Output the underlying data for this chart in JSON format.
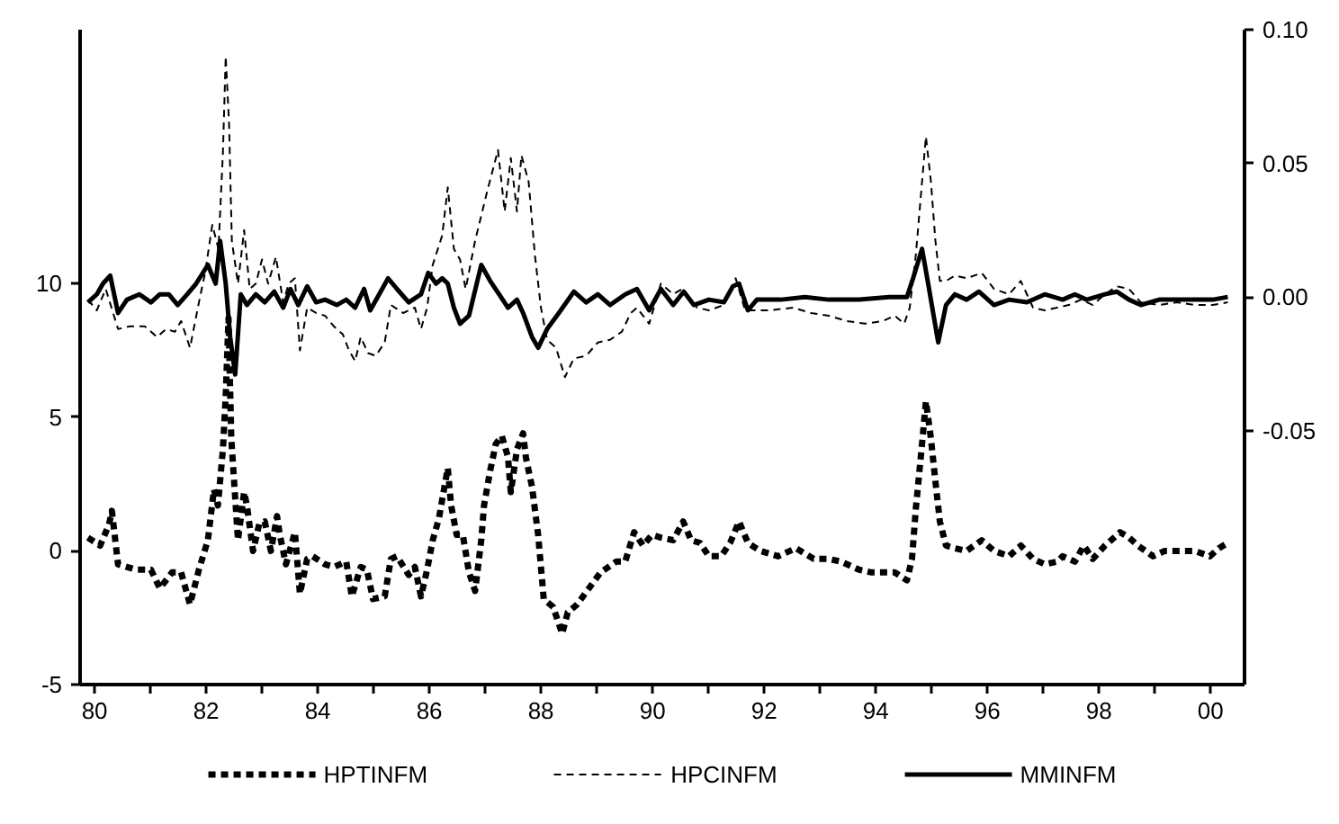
{
  "chart_data": {
    "type": "line",
    "legend": "bottom",
    "xlim": [
      1979.74,
      2000.61
    ],
    "ylim": [
      -5,
      19.5
    ],
    "y2lim": [
      -0.145,
      0.1
    ],
    "xticks": [
      {
        "value": 1980,
        "label": "80"
      },
      {
        "value": 1981,
        "label": null
      },
      {
        "value": 1982,
        "label": "82"
      },
      {
        "value": 1983,
        "label": null
      },
      {
        "value": 1984,
        "label": "84"
      },
      {
        "value": 1985,
        "label": null
      },
      {
        "value": 1986,
        "label": "86"
      },
      {
        "value": 1987,
        "label": null
      },
      {
        "value": 1988,
        "label": "88"
      },
      {
        "value": 1989,
        "label": null
      },
      {
        "value": 1990,
        "label": "90"
      },
      {
        "value": 1991,
        "label": null
      },
      {
        "value": 1992,
        "label": "92"
      },
      {
        "value": 1993,
        "label": null
      },
      {
        "value": 1994,
        "label": "94"
      },
      {
        "value": 1995,
        "label": null
      },
      {
        "value": 1996,
        "label": "96"
      },
      {
        "value": 1997,
        "label": null
      },
      {
        "value": 1998,
        "label": "98"
      },
      {
        "value": 1999,
        "label": null
      },
      {
        "value": 2000,
        "label": "00"
      }
    ],
    "yticks": [
      -5,
      0,
      5,
      10
    ],
    "y2ticks": [
      {
        "value": -0.05,
        "label": "-0.05"
      },
      {
        "value": 0,
        "label": "0.00"
      },
      {
        "value": 0.05,
        "label": "0.05"
      },
      {
        "value": 0.1,
        "label": "0.10"
      }
    ],
    "series": [
      {
        "name": "HPTINFM",
        "color": "#000000",
        "line_style": "dotted",
        "x": [
          1979.88,
          1980.1,
          1980.26,
          1980.31,
          1980.42,
          1980.74,
          1981.01,
          1981.17,
          1981.39,
          1981.55,
          1981.71,
          1981.87,
          1982.03,
          1982.14,
          1982.21,
          1982.3,
          1982.35,
          1982.4,
          1982.45,
          1982.57,
          1982.68,
          1982.73,
          1982.84,
          1982.95,
          1983.05,
          1983.16,
          1983.27,
          1983.32,
          1983.43,
          1983.59,
          1983.68,
          1983.81,
          1983.91,
          1984.13,
          1984.29,
          1984.51,
          1984.61,
          1984.77,
          1984.88,
          1984.99,
          1985.2,
          1985.31,
          1985.42,
          1985.63,
          1985.74,
          1985.85,
          1985.96,
          1986.06,
          1986.17,
          1986.33,
          1986.39,
          1986.49,
          1986.6,
          1986.71,
          1986.82,
          1986.93,
          1986.98,
          1987.09,
          1987.19,
          1987.3,
          1987.41,
          1987.46,
          1987.57,
          1987.68,
          1987.73,
          1987.84,
          1987.95,
          1988.05,
          1988.22,
          1988.38,
          1988.48,
          1988.65,
          1988.86,
          1989.07,
          1989.35,
          1989.51,
          1989.67,
          1989.83,
          1989.99,
          1990.15,
          1990.37,
          1990.55,
          1990.69,
          1990.85,
          1991.01,
          1991.23,
          1991.39,
          1991.55,
          1991.71,
          1991.93,
          1992.25,
          1992.57,
          1992.89,
          1993.16,
          1993.38,
          1993.7,
          1993.91,
          1994.13,
          1994.34,
          1994.56,
          1994.65,
          1994.72,
          1994.83,
          1994.9,
          1994.99,
          1995.07,
          1995.15,
          1995.26,
          1995.42,
          1995.63,
          1995.9,
          1996.12,
          1996.39,
          1996.6,
          1996.82,
          1997.03,
          1997.25,
          1997.35,
          1997.57,
          1997.73,
          1997.89,
          1998.11,
          1998.38,
          1998.54,
          1998.7,
          1998.97,
          1999.18,
          1999.4,
          1999.72,
          1999.99,
          2000.15,
          2000.31
        ],
        "values": [
          0.5,
          0.2,
          1.0,
          1.5,
          -0.5,
          -0.7,
          -0.7,
          -1.4,
          -0.8,
          -0.8,
          -2.0,
          -0.7,
          0.4,
          2.3,
          1.7,
          3.8,
          5.8,
          8.7,
          4.2,
          0.4,
          2.2,
          1.7,
          0.0,
          1.0,
          1.1,
          0.0,
          1.3,
          0.6,
          -0.5,
          0.7,
          -1.6,
          -0.3,
          -0.2,
          -0.5,
          -0.6,
          -0.4,
          -1.7,
          -0.6,
          -0.7,
          -1.8,
          -1.7,
          -0.3,
          -0.2,
          -0.9,
          -0.6,
          -1.7,
          -0.7,
          0.4,
          1.2,
          3.1,
          1.7,
          0.6,
          0.6,
          -0.8,
          -1.5,
          0.4,
          1.7,
          3.0,
          4.0,
          4.3,
          3.5,
          2.2,
          3.8,
          4.4,
          3.5,
          2.4,
          0.6,
          -1.8,
          -2.1,
          -3.1,
          -2.3,
          -2.0,
          -1.4,
          -0.8,
          -0.4,
          -0.4,
          0.7,
          0.2,
          0.6,
          0.5,
          0.4,
          1.1,
          0.4,
          0.3,
          -0.2,
          -0.2,
          0.3,
          1.1,
          0.3,
          0.0,
          -0.2,
          0.1,
          -0.3,
          -0.3,
          -0.4,
          -0.7,
          -0.8,
          -0.8,
          -0.8,
          -1.1,
          -0.3,
          1.6,
          4.0,
          5.6,
          4.2,
          2.6,
          1.1,
          0.2,
          0.1,
          0.0,
          0.4,
          0.0,
          -0.2,
          0.2,
          -0.3,
          -0.5,
          -0.4,
          -0.2,
          -0.4,
          0.2,
          -0.3,
          0.2,
          0.7,
          0.5,
          0.2,
          -0.2,
          0.0,
          0.0,
          0.0,
          -0.2,
          0.1,
          0.3
        ]
      },
      {
        "name": "HPCINFM",
        "color": "#000000",
        "line_style": "dashed",
        "axis": "y2",
        "x": [
          1979.88,
          1980.04,
          1980.2,
          1980.42,
          1980.63,
          1980.9,
          1981.12,
          1981.28,
          1981.44,
          1981.55,
          1981.71,
          1981.87,
          1981.98,
          1982.11,
          1982.22,
          1982.3,
          1982.35,
          1982.41,
          1982.46,
          1982.57,
          1982.68,
          1982.78,
          1982.89,
          1983.0,
          1983.11,
          1983.25,
          1983.38,
          1983.48,
          1983.59,
          1983.68,
          1983.81,
          1983.97,
          1984.13,
          1984.29,
          1984.45,
          1984.56,
          1984.67,
          1984.77,
          1984.9,
          1985.04,
          1985.2,
          1985.31,
          1985.53,
          1985.74,
          1985.85,
          1985.96,
          1986.06,
          1986.23,
          1986.33,
          1986.44,
          1986.55,
          1986.65,
          1986.82,
          1987.03,
          1987.23,
          1987.35,
          1987.46,
          1987.57,
          1987.65,
          1987.78,
          1987.89,
          1988.0,
          1988.11,
          1988.27,
          1988.43,
          1988.59,
          1988.81,
          1989.02,
          1989.24,
          1989.45,
          1989.61,
          1989.72,
          1989.94,
          1990.15,
          1990.37,
          1990.53,
          1990.8,
          1991.01,
          1991.28,
          1991.49,
          1991.66,
          1992.09,
          1992.52,
          1992.84,
          1993.16,
          1993.48,
          1993.81,
          1994.13,
          1994.34,
          1994.51,
          1994.61,
          1994.72,
          1994.83,
          1994.9,
          1994.99,
          1995.07,
          1995.15,
          1995.26,
          1995.42,
          1995.63,
          1995.9,
          1996.12,
          1996.39,
          1996.6,
          1996.82,
          1997.03,
          1997.25,
          1997.46,
          1997.68,
          1997.89,
          1998.11,
          1998.32,
          1998.54,
          1998.75,
          1999.08,
          1999.4,
          1999.72,
          2000.04,
          2000.31
        ],
        "values": [
          -0.001,
          -0.005,
          0.003,
          -0.012,
          -0.011,
          -0.011,
          -0.015,
          -0.012,
          -0.013,
          -0.009,
          -0.019,
          -0.002,
          0.009,
          0.027,
          0.018,
          0.054,
          0.09,
          0.065,
          0.021,
          0.005,
          0.025,
          0.003,
          0.005,
          0.014,
          0.005,
          0.015,
          -0.002,
          0.005,
          0.007,
          -0.02,
          -0.004,
          -0.006,
          -0.007,
          -0.011,
          -0.014,
          -0.02,
          -0.024,
          -0.015,
          -0.021,
          -0.022,
          -0.017,
          -0.003,
          -0.006,
          -0.004,
          -0.012,
          -0.004,
          0.012,
          0.023,
          0.041,
          0.018,
          0.014,
          0.003,
          0.021,
          0.039,
          0.055,
          0.032,
          0.052,
          0.032,
          0.053,
          0.043,
          0.016,
          -0.004,
          -0.016,
          -0.019,
          -0.03,
          -0.023,
          -0.022,
          -0.017,
          -0.016,
          -0.013,
          -0.006,
          -0.004,
          -0.01,
          0.005,
          0.001,
          0.003,
          -0.004,
          -0.005,
          -0.003,
          0.007,
          -0.005,
          -0.005,
          -0.004,
          -0.006,
          -0.007,
          -0.009,
          -0.01,
          -0.009,
          -0.007,
          -0.01,
          -0.004,
          0.016,
          0.043,
          0.06,
          0.043,
          0.021,
          0.006,
          0.006,
          0.008,
          0.007,
          0.009,
          0.003,
          0.001,
          0.006,
          -0.004,
          -0.005,
          -0.004,
          -0.003,
          -0.001,
          -0.003,
          0.001,
          0.004,
          0.003,
          -0.002,
          -0.003,
          -0.002,
          -0.003,
          -0.003,
          -0.002
        ]
      },
      {
        "name": "MMINFM",
        "color": "#000000",
        "line_style": "solid",
        "axis": "y2",
        "x": [
          1979.88,
          1980.04,
          1980.15,
          1980.28,
          1980.42,
          1980.58,
          1980.8,
          1981.01,
          1981.17,
          1981.33,
          1981.49,
          1981.66,
          1981.82,
          1982.03,
          1982.17,
          1982.25,
          1982.35,
          1982.43,
          1982.52,
          1982.62,
          1982.73,
          1982.89,
          1983.05,
          1983.22,
          1983.38,
          1983.51,
          1983.65,
          1983.81,
          1983.97,
          1984.13,
          1984.34,
          1984.51,
          1984.67,
          1984.83,
          1984.94,
          1985.1,
          1985.26,
          1985.42,
          1985.63,
          1985.85,
          1985.98,
          1986.12,
          1986.23,
          1986.33,
          1986.44,
          1986.55,
          1986.71,
          1986.93,
          1987.09,
          1987.25,
          1987.41,
          1987.57,
          1987.68,
          1987.84,
          1987.95,
          1988.11,
          1988.32,
          1988.59,
          1988.81,
          1989.02,
          1989.24,
          1989.51,
          1989.72,
          1989.94,
          1990.15,
          1990.37,
          1990.56,
          1990.74,
          1991.01,
          1991.28,
          1991.44,
          1991.55,
          1991.71,
          1991.87,
          1992.3,
          1992.73,
          1993.16,
          1993.7,
          1994.24,
          1994.56,
          1994.67,
          1994.83,
          1994.94,
          1995.12,
          1995.26,
          1995.42,
          1995.63,
          1995.85,
          1996.12,
          1996.39,
          1996.71,
          1997.03,
          1997.35,
          1997.57,
          1997.78,
          1998.11,
          1998.32,
          1998.54,
          1998.75,
          1999.08,
          1999.4,
          1999.72,
          2000.04,
          2000.31
        ],
        "values": [
          -0.002,
          0.001,
          0.005,
          0.008,
          -0.006,
          -0.001,
          0.001,
          -0.002,
          0.001,
          0.001,
          -0.003,
          0.001,
          0.005,
          0.012,
          0.005,
          0.021,
          0.005,
          -0.015,
          -0.029,
          0.001,
          -0.003,
          0.001,
          -0.002,
          0.002,
          -0.004,
          0.003,
          -0.003,
          0.004,
          -0.002,
          -0.001,
          -0.003,
          -0.001,
          -0.004,
          0.003,
          -0.005,
          0.001,
          0.007,
          0.003,
          -0.002,
          0.001,
          0.009,
          0.005,
          0.007,
          0.005,
          -0.004,
          -0.01,
          -0.007,
          0.012,
          0.006,
          0.001,
          -0.004,
          -0.001,
          -0.006,
          -0.015,
          -0.019,
          -0.012,
          -0.006,
          0.002,
          -0.002,
          0.001,
          -0.003,
          0.001,
          0.003,
          -0.005,
          0.003,
          -0.003,
          0.002,
          -0.003,
          -0.001,
          -0.002,
          0.004,
          0.005,
          -0.005,
          -0.001,
          -0.001,
          0.0,
          -0.001,
          -0.001,
          0.0,
          0.0,
          0.007,
          0.018,
          0.005,
          -0.017,
          -0.003,
          0.001,
          -0.001,
          0.002,
          -0.003,
          -0.001,
          -0.002,
          0.001,
          -0.001,
          0.001,
          -0.001,
          0.001,
          0.002,
          -0.001,
          -0.003,
          -0.001,
          -0.001,
          -0.001,
          -0.001,
          0.0
        ]
      }
    ]
  }
}
